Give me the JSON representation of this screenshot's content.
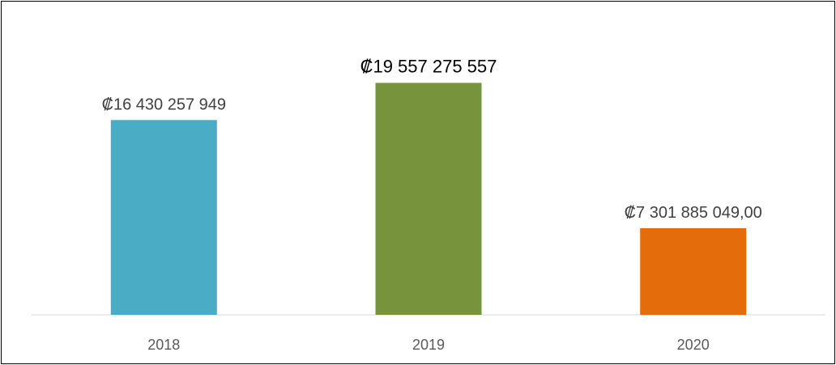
{
  "chart_data": {
    "type": "bar",
    "title": "",
    "xlabel": "",
    "ylabel": "",
    "categories": [
      "2018",
      "2019",
      "2020"
    ],
    "values": [
      16430257949,
      19557275557,
      7301885049.0
    ],
    "data_labels": [
      "₡16 430 257 949",
      "₡19 557 275 557",
      "₡7 301 885 049,00"
    ],
    "colors": [
      "#4BACC6",
      "#77933C",
      "#E46C0A"
    ],
    "ylim": [
      0,
      23000000000
    ],
    "grid": false,
    "legend": "none"
  }
}
